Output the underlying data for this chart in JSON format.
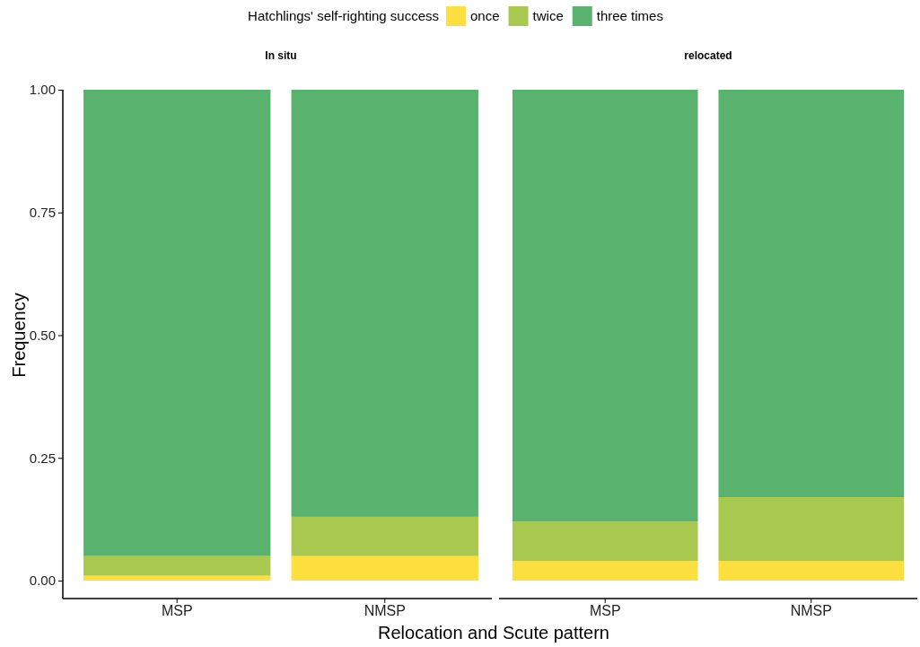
{
  "chart_data": [
    {
      "type": "bar",
      "title": "In situ",
      "xlabel": "Relocation and Scute pattern",
      "ylabel": "Frequency",
      "legend_title": "Hatchlings' self-righting success",
      "legend": "top",
      "stacked": true,
      "categories": [
        "MSP",
        "NMSP"
      ],
      "ylim": [
        0,
        1
      ],
      "yticks": [
        {
          "value": 0,
          "label": "0.00"
        },
        {
          "value": 0.25,
          "label": "0.25"
        },
        {
          "value": 0.5,
          "label": "0.50"
        },
        {
          "value": 0.75,
          "label": "0.75"
        },
        {
          "value": 1,
          "label": "1.00"
        }
      ],
      "series": [
        {
          "name": "once",
          "color": "#fddf3f",
          "values": [
            0.01,
            0.05
          ]
        },
        {
          "name": "twice",
          "color": "#a8c84f",
          "values": [
            0.04,
            0.08
          ]
        },
        {
          "name": "three times",
          "color": "#5ab26f",
          "values": [
            0.95,
            0.87
          ]
        }
      ]
    },
    {
      "type": "bar",
      "title": "relocated",
      "stacked": true,
      "tick_labels": "x",
      "categories": [
        "MSP",
        "NMSP"
      ],
      "ylim": [
        0,
        1
      ],
      "series": [
        {
          "color": "#fddf3f",
          "values": [
            0.04,
            0.04
          ]
        },
        {
          "color": "#a8c84f",
          "values": [
            0.08,
            0.13
          ]
        },
        {
          "color": "#5ab26f",
          "values": [
            0.88,
            0.83
          ]
        }
      ]
    }
  ]
}
